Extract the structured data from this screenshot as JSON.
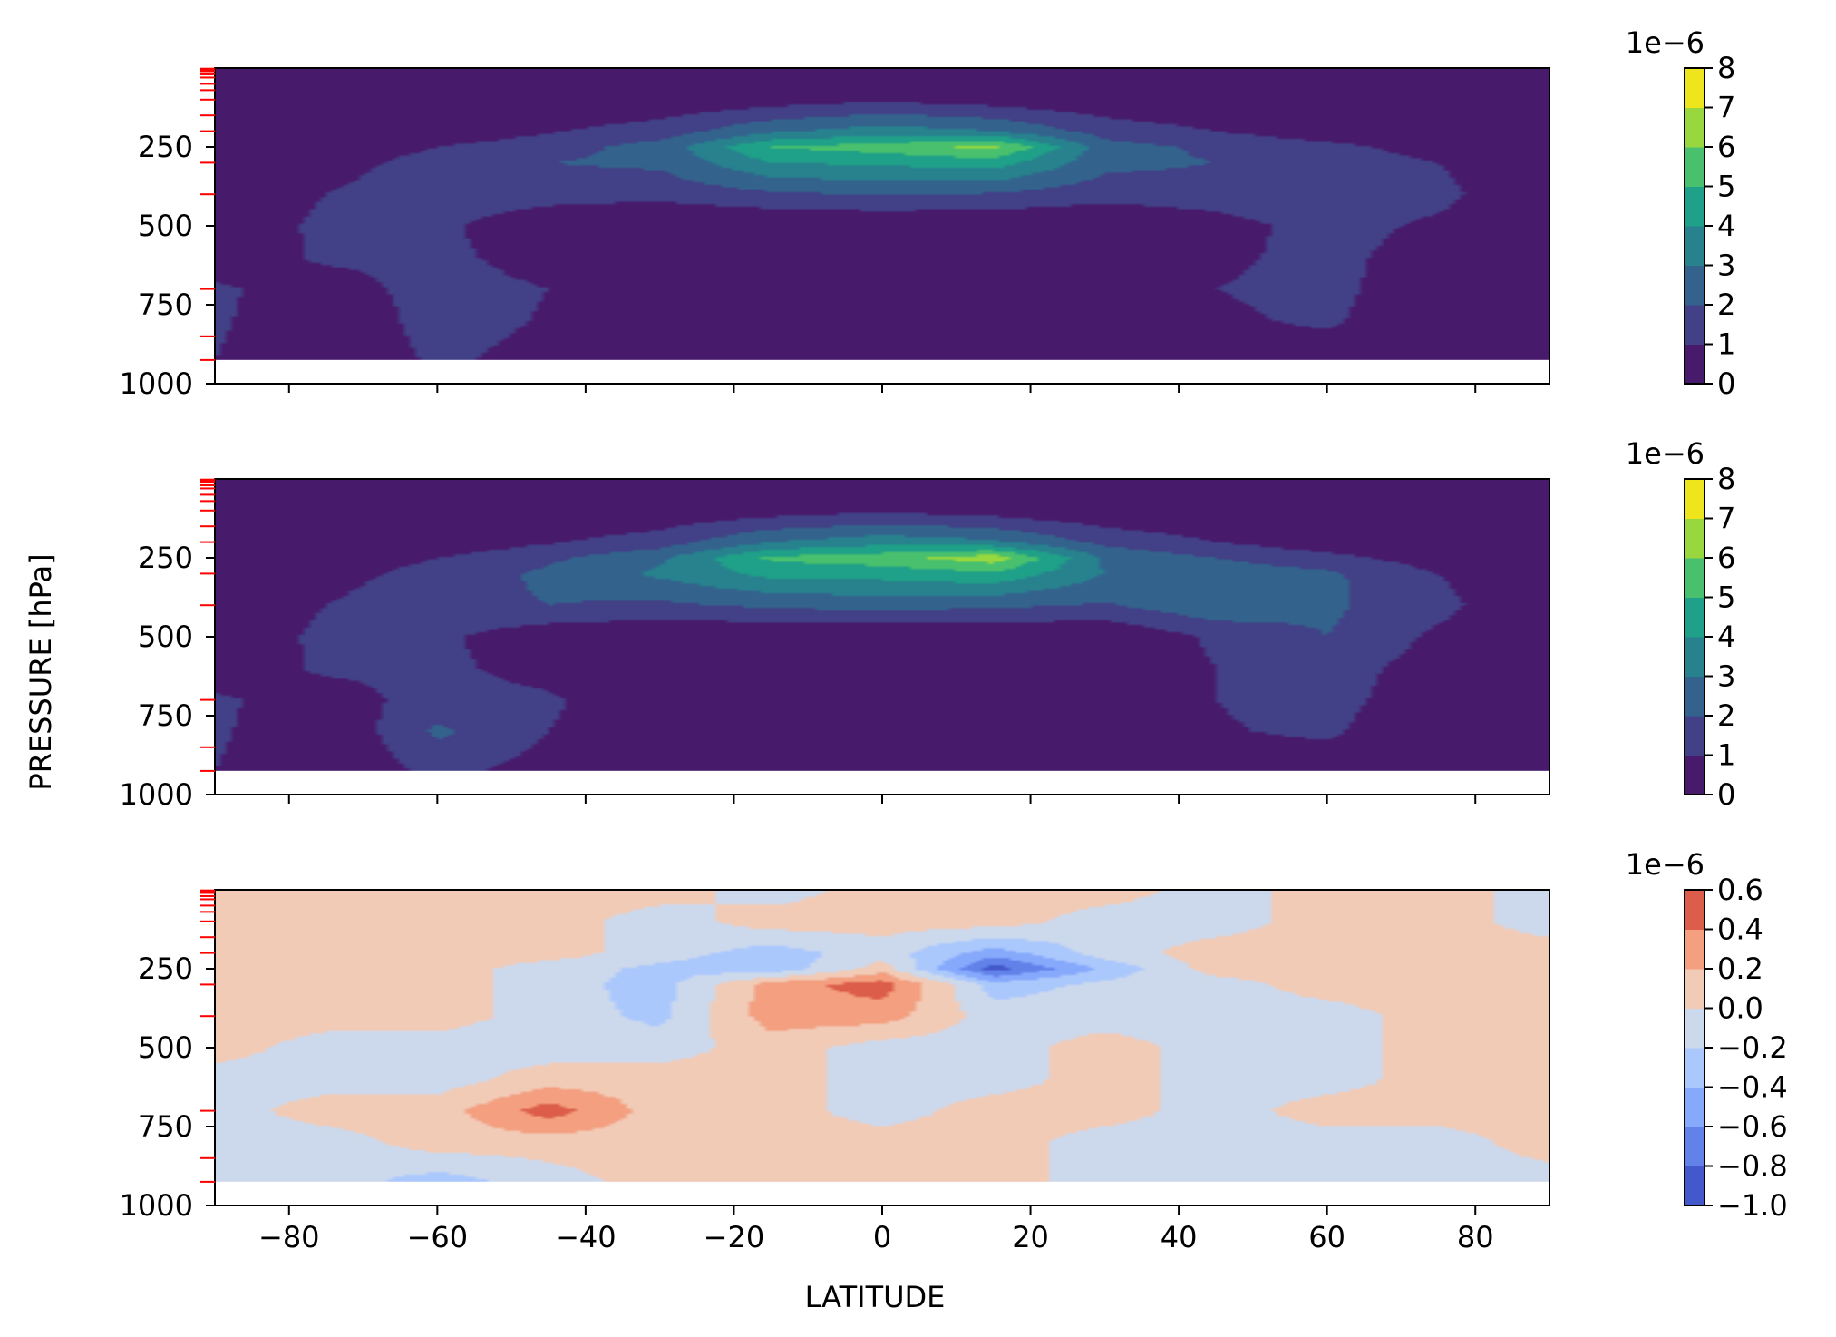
{
  "figure": {
    "ylabel": "PRESSURE [hPa]",
    "xlabel": "LATITUDE"
  },
  "colors": {
    "viridis": [
      "#481a6c",
      "#424086",
      "#33638d",
      "#27828e",
      "#1fa088",
      "#48c06e",
      "#98d83e",
      "#efe51c"
    ],
    "coolwarm": [
      "#4358cb",
      "#6282ea",
      "#86a9fc",
      "#abc8fd",
      "#ccd9ed",
      "#f2cbb7",
      "#f39f80",
      "#dc5d4a"
    ],
    "minor_tick": "#ff0000"
  },
  "chart_data": [
    {
      "type": "contourf",
      "panel": "top",
      "x_ticks": [
        -80,
        -60,
        -40,
        -20,
        0,
        20,
        40,
        60,
        80
      ],
      "x_tick_labels": [],
      "xlim": [
        -90,
        90
      ],
      "y_ticks": [
        250,
        500,
        750,
        1000
      ],
      "y_tick_labels": [
        "250",
        "500",
        "750",
        "1000"
      ],
      "ylim": [
        1000,
        0
      ],
      "y_inverted": true,
      "data_bottom_pressure": 925,
      "red_minor_pressure_levels": [
        2,
        5,
        10,
        20,
        30,
        50,
        70,
        100,
        150,
        200,
        300,
        400,
        700,
        850,
        925
      ],
      "colorbar": {
        "levels": [
          0,
          1,
          2,
          3,
          4,
          5,
          6,
          7,
          8
        ],
        "tick_labels": [
          "0",
          "1",
          "2",
          "3",
          "4",
          "5",
          "6",
          "7",
          "8"
        ],
        "offset_text": "1e−6",
        "cmap": "viridis"
      },
      "field_grid": {
        "lat": [
          -90,
          -75,
          -60,
          -45,
          -30,
          -15,
          0,
          15,
          30,
          45,
          60,
          75,
          90
        ],
        "pressure": [
          0,
          100,
          200,
          250,
          300,
          400,
          500,
          600,
          700,
          800,
          925
        ],
        "values_1e-6": [
          [
            0.0,
            0.0,
            0.0,
            0.0,
            0.0,
            0.0,
            0.0,
            0.0,
            0.0,
            0.0,
            0.0,
            0.0,
            0.0
          ],
          [
            0.0,
            0.0,
            0.0,
            0.0,
            0.2,
            0.5,
            0.8,
            0.5,
            0.2,
            0.0,
            0.0,
            0.0,
            0.0
          ],
          [
            0.0,
            0.0,
            0.3,
            0.9,
            1.5,
            2.8,
            3.5,
            3.0,
            1.6,
            1.0,
            0.4,
            0.2,
            0.0
          ],
          [
            0.0,
            0.3,
            1.0,
            1.6,
            2.4,
            5.0,
            5.5,
            6.3,
            2.4,
            1.8,
            1.3,
            0.5,
            0.0
          ],
          [
            0.0,
            0.6,
            1.4,
            2.0,
            2.2,
            4.0,
            4.2,
            4.5,
            2.3,
            2.0,
            1.8,
            1.0,
            0.0
          ],
          [
            0.0,
            1.0,
            1.6,
            1.4,
            1.3,
            1.8,
            2.1,
            1.9,
            1.4,
            1.5,
            1.7,
            1.3,
            0.0
          ],
          [
            0.0,
            1.3,
            1.2,
            0.3,
            0.0,
            0.0,
            0.0,
            0.0,
            0.0,
            0.6,
            1.4,
            0.8,
            0.0
          ],
          [
            0.2,
            1.2,
            1.3,
            0.5,
            0.0,
            0.0,
            0.0,
            0.0,
            0.0,
            0.8,
            1.3,
            0.5,
            0.0
          ],
          [
            1.2,
            0.4,
            1.5,
            1.0,
            0.0,
            0.0,
            0.0,
            0.0,
            0.0,
            1.0,
            1.3,
            0.3,
            0.0
          ],
          [
            1.2,
            0.0,
            1.5,
            0.9,
            0.0,
            0.0,
            0.0,
            0.0,
            0.0,
            0.8,
            1.2,
            0.0,
            0.0
          ],
          [
            1.0,
            0.0,
            1.2,
            0.6,
            0.0,
            0.0,
            0.0,
            0.0,
            0.0,
            0.4,
            0.3,
            0.0,
            0.0
          ]
        ]
      }
    },
    {
      "type": "contourf",
      "panel": "middle",
      "x_ticks": [
        -80,
        -60,
        -40,
        -20,
        0,
        20,
        40,
        60,
        80
      ],
      "x_tick_labels": [],
      "xlim": [
        -90,
        90
      ],
      "y_ticks": [
        250,
        500,
        750,
        1000
      ],
      "y_tick_labels": [
        "250",
        "500",
        "750",
        "1000"
      ],
      "ylim": [
        1000,
        0
      ],
      "y_inverted": true,
      "data_bottom_pressure": 925,
      "red_minor_pressure_levels": [
        2,
        5,
        10,
        20,
        30,
        50,
        70,
        100,
        150,
        200,
        300,
        400,
        700,
        850,
        925
      ],
      "colorbar": {
        "levels": [
          0,
          1,
          2,
          3,
          4,
          5,
          6,
          7,
          8
        ],
        "tick_labels": [
          "0",
          "1",
          "2",
          "3",
          "4",
          "5",
          "6",
          "7",
          "8"
        ],
        "offset_text": "1e−6",
        "cmap": "viridis"
      },
      "field_grid": {
        "lat": [
          -90,
          -75,
          -60,
          -45,
          -30,
          -15,
          0,
          15,
          30,
          45,
          60,
          75,
          90
        ],
        "pressure": [
          0,
          100,
          200,
          250,
          300,
          400,
          500,
          600,
          700,
          800,
          925
        ],
        "values_1e-6": [
          [
            0.0,
            0.0,
            0.0,
            0.0,
            0.0,
            0.0,
            0.0,
            0.0,
            0.0,
            0.0,
            0.0,
            0.0,
            0.0
          ],
          [
            0.0,
            0.0,
            0.0,
            0.0,
            0.2,
            0.5,
            0.8,
            0.5,
            0.2,
            0.0,
            0.0,
            0.0,
            0.0
          ],
          [
            0.0,
            0.0,
            0.3,
            0.9,
            1.5,
            3.0,
            3.6,
            3.2,
            1.7,
            1.0,
            0.4,
            0.2,
            0.0
          ],
          [
            0.0,
            0.3,
            1.0,
            1.8,
            2.8,
            5.2,
            5.6,
            6.6,
            2.8,
            2.0,
            1.3,
            0.5,
            0.0
          ],
          [
            0.0,
            0.6,
            1.4,
            2.2,
            3.2,
            4.3,
            4.4,
            4.8,
            3.0,
            2.6,
            2.2,
            1.0,
            0.0
          ],
          [
            0.0,
            1.0,
            1.7,
            2.0,
            1.8,
            2.2,
            2.4,
            2.2,
            1.9,
            2.8,
            2.2,
            1.3,
            0.0
          ],
          [
            0.0,
            1.3,
            1.2,
            0.3,
            0.0,
            0.0,
            0.0,
            0.0,
            0.0,
            1.2,
            2.0,
            0.8,
            0.0
          ],
          [
            0.2,
            1.2,
            1.3,
            0.5,
            0.0,
            0.0,
            0.0,
            0.0,
            0.0,
            1.0,
            1.5,
            0.5,
            0.0
          ],
          [
            1.2,
            0.4,
            1.5,
            1.2,
            0.0,
            0.0,
            0.0,
            0.0,
            0.0,
            1.0,
            1.4,
            0.3,
            0.0
          ],
          [
            1.2,
            0.0,
            2.2,
            1.0,
            0.0,
            0.0,
            0.0,
            0.0,
            0.0,
            0.9,
            1.2,
            0.0,
            0.0
          ],
          [
            1.0,
            0.0,
            1.3,
            0.6,
            0.0,
            0.0,
            0.0,
            0.0,
            0.0,
            0.4,
            0.3,
            0.0,
            0.0
          ]
        ]
      }
    },
    {
      "type": "contourf",
      "panel": "bottom",
      "x_ticks": [
        -80,
        -60,
        -40,
        -20,
        0,
        20,
        40,
        60,
        80
      ],
      "x_tick_labels": [
        "−80",
        "−60",
        "−40",
        "−20",
        "0",
        "20",
        "40",
        "60",
        "80"
      ],
      "xlim": [
        -90,
        90
      ],
      "y_ticks": [
        250,
        500,
        750,
        1000
      ],
      "y_tick_labels": [
        "250",
        "500",
        "750",
        "1000"
      ],
      "ylim": [
        1000,
        0
      ],
      "y_inverted": true,
      "data_bottom_pressure": 925,
      "red_minor_pressure_levels": [
        2,
        5,
        10,
        20,
        30,
        50,
        70,
        100,
        150,
        200,
        300,
        400,
        700,
        850,
        925
      ],
      "colorbar": {
        "levels": [
          -1.0,
          -0.8,
          -0.6,
          -0.4,
          -0.2,
          0.0,
          0.2,
          0.4,
          0.6
        ],
        "tick_labels": [
          "−1.0",
          "−0.8",
          "−0.6",
          "−0.4",
          "−0.2",
          "0.0",
          "0.2",
          "0.4",
          "0.6"
        ],
        "offset_text": "1e−6",
        "cmap": "coolwarm"
      },
      "field_grid": {
        "lat": [
          -90,
          -75,
          -60,
          -45,
          -30,
          -15,
          0,
          15,
          30,
          45,
          60,
          75,
          90
        ],
        "pressure": [
          0,
          100,
          200,
          250,
          300,
          400,
          500,
          600,
          700,
          800,
          925
        ],
        "values_1e-6": [
          [
            0.1,
            0.1,
            0.1,
            0.1,
            0.1,
            -0.1,
            0.1,
            0.1,
            0.1,
            -0.1,
            0.1,
            0.1,
            -0.1
          ],
          [
            0.1,
            0.1,
            0.1,
            0.1,
            -0.1,
            0.1,
            0.1,
            0.1,
            -0.1,
            -0.1,
            0.1,
            0.1,
            -0.1
          ],
          [
            0.1,
            0.1,
            0.1,
            0.1,
            -0.1,
            -0.3,
            -0.1,
            -0.5,
            -0.1,
            0.1,
            0.1,
            0.1,
            0.1
          ],
          [
            0.1,
            0.1,
            0.1,
            -0.1,
            -0.25,
            -0.35,
            0.1,
            -0.9,
            -0.35,
            0.1,
            0.1,
            0.1,
            0.1
          ],
          [
            0.1,
            0.1,
            0.1,
            -0.1,
            -0.3,
            0.3,
            0.5,
            -0.3,
            -0.15,
            -0.1,
            0.1,
            0.1,
            0.1
          ],
          [
            0.1,
            0.1,
            0.1,
            -0.1,
            -0.25,
            0.3,
            0.3,
            -0.1,
            -0.1,
            -0.1,
            -0.1,
            0.1,
            0.1
          ],
          [
            0.1,
            -0.1,
            -0.1,
            -0.1,
            -0.1,
            0.1,
            -0.1,
            -0.1,
            0.1,
            -0.1,
            -0.1,
            0.1,
            0.1
          ],
          [
            -0.1,
            -0.1,
            -0.1,
            0.1,
            0.1,
            0.1,
            -0.1,
            -0.1,
            0.1,
            -0.1,
            -0.1,
            0.1,
            0.1
          ],
          [
            -0.1,
            0.1,
            0.1,
            0.5,
            0.1,
            0.1,
            -0.1,
            0.1,
            0.1,
            -0.1,
            0.1,
            0.1,
            0.1
          ],
          [
            -0.1,
            -0.1,
            0.1,
            0.1,
            0.1,
            0.1,
            0.1,
            0.1,
            -0.1,
            -0.1,
            -0.1,
            -0.1,
            0.1
          ],
          [
            -0.1,
            -0.1,
            -0.3,
            -0.1,
            0.1,
            0.1,
            0.1,
            0.1,
            -0.1,
            -0.1,
            -0.1,
            -0.1,
            -0.1
          ]
        ]
      }
    }
  ]
}
